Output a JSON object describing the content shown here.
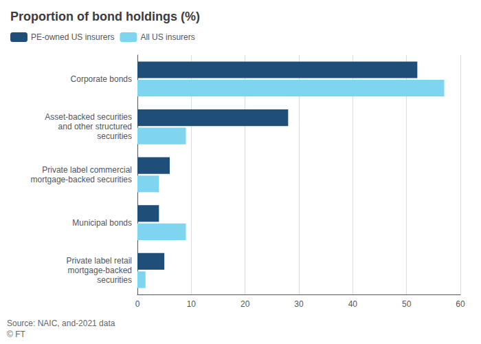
{
  "chart_data": {
    "type": "bar",
    "orientation": "horizontal",
    "title": "Proportion of bond holdings (%)",
    "categories": [
      "Corporate bonds",
      "Asset-backed securities\nand other structured\nsecurities",
      "Private label commercial\nmortgage-backed securities",
      "Municipal bonds",
      "Private label retail\nmortgage-backed\nsecurities"
    ],
    "series": [
      {
        "name": "PE-owned US insurers",
        "color": "#1f4e79",
        "values": [
          52,
          28,
          6,
          4,
          5
        ]
      },
      {
        "name": "All US insurers",
        "color": "#7fd4f0",
        "values": [
          57,
          9,
          4,
          9,
          1.5
        ]
      }
    ],
    "xlim": [
      0,
      60
    ],
    "xticks": [
      0,
      10,
      20,
      30,
      40,
      50,
      60
    ],
    "grid": true,
    "legend": "upper left",
    "annotations": [
      "Source: NAIC, and-2021 data",
      "© FT"
    ]
  }
}
